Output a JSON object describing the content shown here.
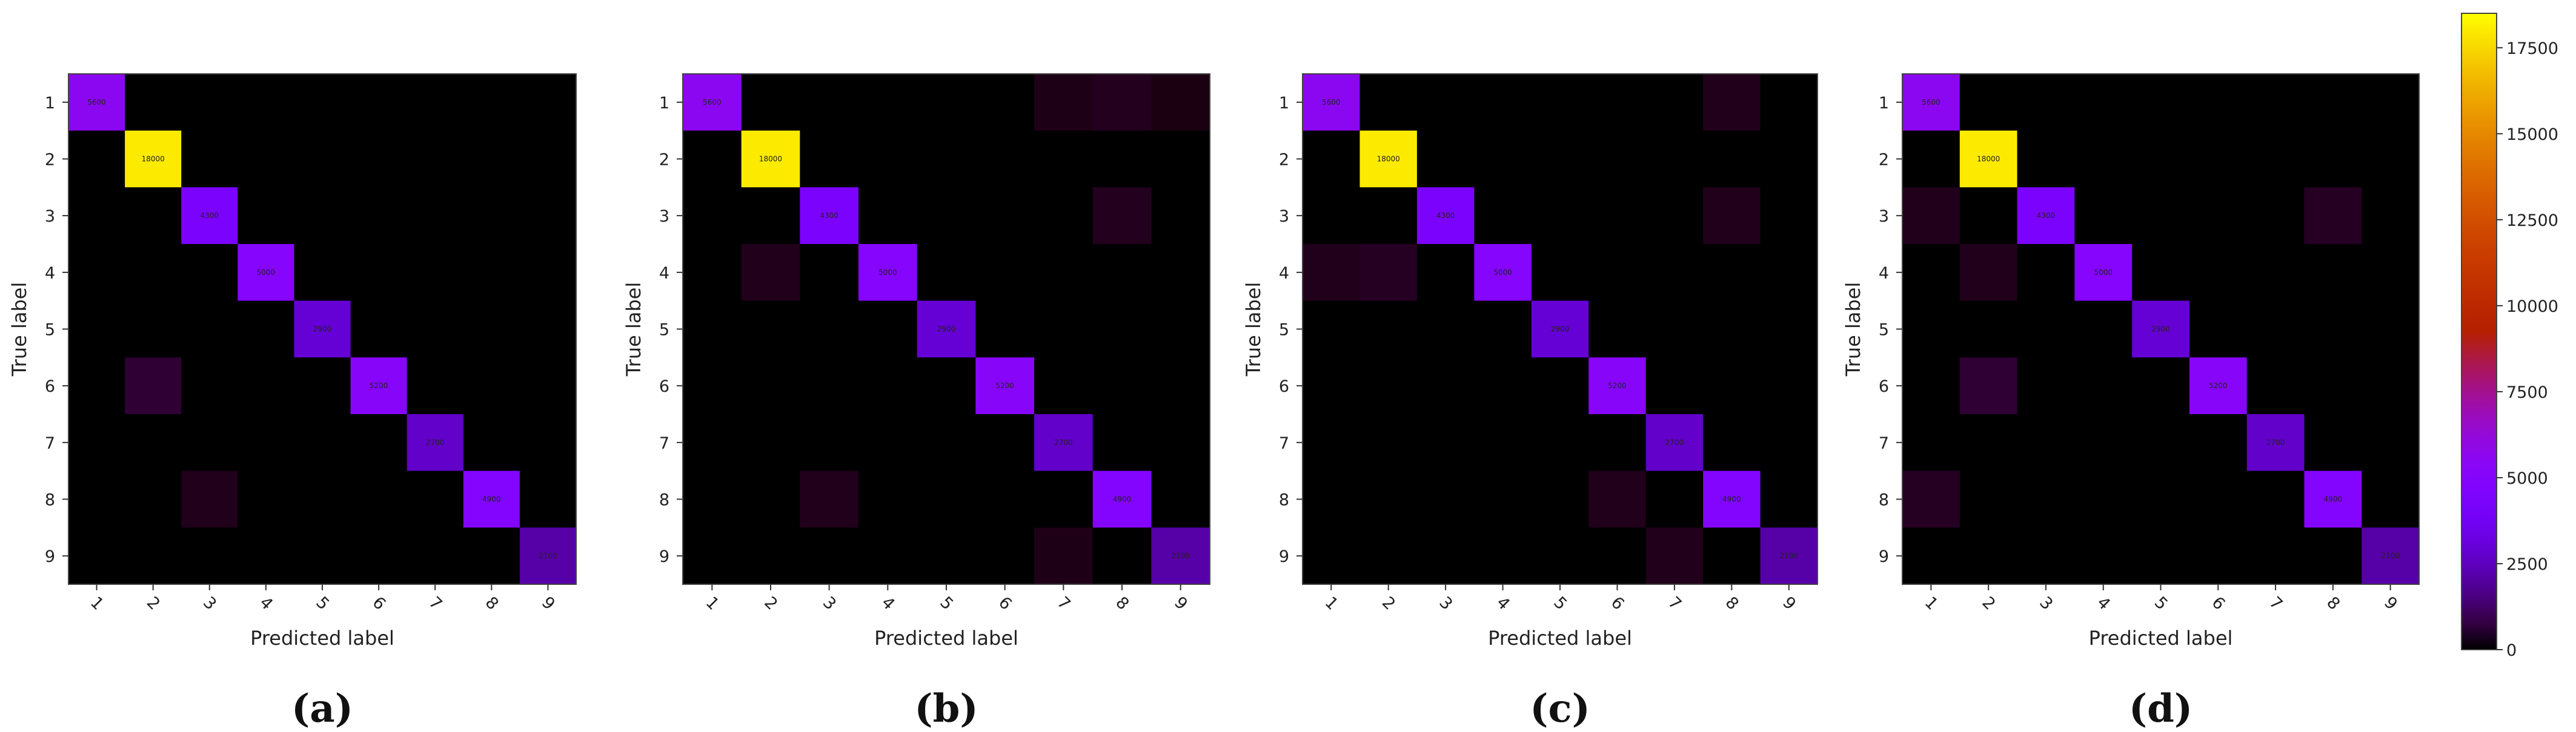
{
  "chart_data": [
    {
      "type": "heatmap",
      "caption": "(a)",
      "xlabel": "Predicted label",
      "ylabel": "True label",
      "x_categories": [
        "1",
        "2",
        "3",
        "4",
        "5",
        "6",
        "7",
        "8",
        "9"
      ],
      "y_categories": [
        "1",
        "2",
        "3",
        "4",
        "5",
        "6",
        "7",
        "8",
        "9"
      ],
      "matrix": [
        [
          5600,
          0,
          0,
          0,
          0,
          0,
          0,
          0,
          0
        ],
        [
          0,
          18000,
          0,
          0,
          0,
          0,
          0,
          0,
          0
        ],
        [
          0,
          0,
          4300,
          0,
          0,
          0,
          0,
          0,
          0
        ],
        [
          0,
          0,
          0,
          5000,
          0,
          0,
          0,
          0,
          0
        ],
        [
          0,
          0,
          0,
          0,
          2900,
          0,
          0,
          0,
          0
        ],
        [
          0,
          600,
          0,
          0,
          0,
          5200,
          0,
          0,
          0
        ],
        [
          0,
          0,
          0,
          0,
          0,
          0,
          2700,
          0,
          0
        ],
        [
          0,
          0,
          300,
          0,
          0,
          0,
          0,
          4900,
          0
        ],
        [
          0,
          0,
          0,
          0,
          0,
          0,
          0,
          0,
          2100
        ]
      ]
    },
    {
      "type": "heatmap",
      "caption": "(b)",
      "xlabel": "Predicted label",
      "ylabel": "True label",
      "x_categories": [
        "1",
        "2",
        "3",
        "4",
        "5",
        "6",
        "7",
        "8",
        "9"
      ],
      "y_categories": [
        "1",
        "2",
        "3",
        "4",
        "5",
        "6",
        "7",
        "8",
        "9"
      ],
      "matrix": [
        [
          5600,
          0,
          0,
          0,
          0,
          0,
          250,
          350,
          200
        ],
        [
          0,
          18000,
          0,
          0,
          0,
          0,
          0,
          0,
          0
        ],
        [
          0,
          0,
          4300,
          0,
          0,
          0,
          0,
          350,
          0
        ],
        [
          0,
          300,
          0,
          5000,
          0,
          0,
          0,
          0,
          0
        ],
        [
          0,
          0,
          0,
          0,
          2900,
          0,
          0,
          0,
          0
        ],
        [
          0,
          0,
          0,
          0,
          0,
          5200,
          0,
          0,
          0
        ],
        [
          0,
          0,
          0,
          0,
          0,
          0,
          2700,
          0,
          0
        ],
        [
          0,
          0,
          300,
          0,
          0,
          0,
          0,
          4900,
          0
        ],
        [
          0,
          0,
          0,
          0,
          0,
          0,
          250,
          0,
          2100
        ]
      ]
    },
    {
      "type": "heatmap",
      "caption": "(c)",
      "xlabel": "Predicted label",
      "ylabel": "True label",
      "x_categories": [
        "1",
        "2",
        "3",
        "4",
        "5",
        "6",
        "7",
        "8",
        "9"
      ],
      "y_categories": [
        "1",
        "2",
        "3",
        "4",
        "5",
        "6",
        "7",
        "8",
        "9"
      ],
      "matrix": [
        [
          5600,
          0,
          0,
          0,
          0,
          0,
          0,
          300,
          0
        ],
        [
          0,
          18000,
          0,
          0,
          0,
          0,
          0,
          0,
          0
        ],
        [
          0,
          0,
          4300,
          0,
          0,
          0,
          0,
          300,
          0
        ],
        [
          300,
          400,
          0,
          5000,
          0,
          0,
          0,
          0,
          0
        ],
        [
          0,
          0,
          0,
          0,
          2900,
          0,
          0,
          0,
          0
        ],
        [
          0,
          0,
          0,
          0,
          0,
          5200,
          0,
          0,
          0
        ],
        [
          0,
          0,
          0,
          0,
          0,
          0,
          2700,
          0,
          0
        ],
        [
          0,
          0,
          0,
          0,
          0,
          300,
          0,
          4900,
          0
        ],
        [
          0,
          0,
          0,
          0,
          0,
          0,
          300,
          0,
          2100
        ]
      ]
    },
    {
      "type": "heatmap",
      "caption": "(d)",
      "xlabel": "Predicted label",
      "ylabel": "True label",
      "x_categories": [
        "1",
        "2",
        "3",
        "4",
        "5",
        "6",
        "7",
        "8",
        "9"
      ],
      "y_categories": [
        "1",
        "2",
        "3",
        "4",
        "5",
        "6",
        "7",
        "8",
        "9"
      ],
      "matrix": [
        [
          5600,
          0,
          0,
          0,
          0,
          0,
          0,
          0,
          0
        ],
        [
          0,
          18000,
          0,
          0,
          0,
          0,
          0,
          0,
          0
        ],
        [
          300,
          0,
          4300,
          0,
          0,
          0,
          0,
          400,
          0
        ],
        [
          0,
          300,
          0,
          5000,
          0,
          0,
          0,
          0,
          0
        ],
        [
          0,
          0,
          0,
          0,
          2900,
          0,
          0,
          0,
          0
        ],
        [
          0,
          600,
          0,
          0,
          0,
          5200,
          0,
          0,
          0
        ],
        [
          0,
          0,
          0,
          0,
          0,
          0,
          2700,
          0,
          0
        ],
        [
          400,
          0,
          0,
          0,
          0,
          0,
          0,
          4900,
          0
        ],
        [
          0,
          0,
          0,
          0,
          0,
          0,
          0,
          0,
          2100
        ]
      ]
    }
  ],
  "colorbar": {
    "colormap": "gnuplot",
    "range": [
      0,
      18500
    ],
    "ticks": [
      "0",
      "2500",
      "5000",
      "7500",
      "10000",
      "12500",
      "15000",
      "17500"
    ]
  }
}
